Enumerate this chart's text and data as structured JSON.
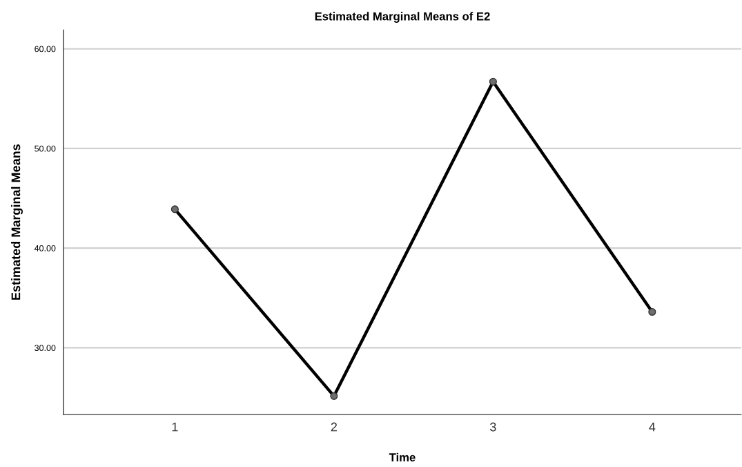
{
  "chart_data": {
    "type": "line",
    "title": "Estimated Marginal Means of E2",
    "xlabel": "Time",
    "ylabel": "Estimated Marginal Means",
    "categories": [
      "1",
      "2",
      "3",
      "4"
    ],
    "series": [
      {
        "color": "#000000",
        "values": [
          43.9,
          25.15,
          56.7,
          33.6
        ]
      }
    ],
    "ylim": [
      23.3,
      61.9
    ],
    "yticks": [
      {
        "value": 30,
        "label": "30.00"
      },
      {
        "value": 40,
        "label": "40.00"
      },
      {
        "value": 50,
        "label": "50.00"
      },
      {
        "value": 60,
        "label": "60.00"
      }
    ],
    "grid": "y",
    "marker": "circle",
    "line_style": "solid"
  }
}
